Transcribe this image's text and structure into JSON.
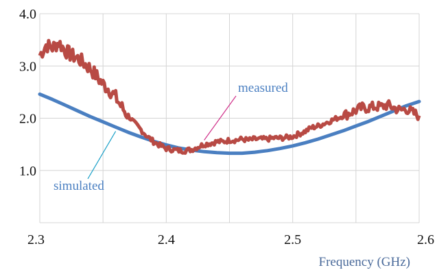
{
  "chart_data": {
    "type": "line",
    "xlabel": "Frequency (GHz)",
    "ylabel": "",
    "xlim": [
      2.3,
      2.6
    ],
    "ylim": [
      0.0,
      4.0
    ],
    "x_ticks": [
      "2.3",
      "2.4",
      "2.5",
      "2.6"
    ],
    "y_ticks": [
      "1.0",
      "2.0",
      "3.0",
      "4.0"
    ],
    "grid": true,
    "colors": {
      "measured": "#b84a44",
      "simulated": "#4a7fc1",
      "grid": "#d4d4d4",
      "xlabel": "#4a6a9a",
      "measured_pointer": "#d0308a",
      "simulated_pointer": "#1aa0c8"
    },
    "annotations": [
      {
        "text": "measured",
        "series": "measured",
        "x": 2.43,
        "y": 1.58
      },
      {
        "text": "simulated",
        "series": "simulated",
        "x": 2.36,
        "y": 1.75
      }
    ],
    "series": [
      {
        "name": "measured",
        "x": [
          2.3,
          2.305,
          2.31,
          2.315,
          2.32,
          2.325,
          2.33,
          2.335,
          2.34,
          2.345,
          2.35,
          2.355,
          2.36,
          2.365,
          2.37,
          2.375,
          2.38,
          2.385,
          2.39,
          2.395,
          2.4,
          2.405,
          2.41,
          2.415,
          2.42,
          2.425,
          2.43,
          2.435,
          2.44,
          2.445,
          2.45,
          2.455,
          2.46,
          2.465,
          2.47,
          2.475,
          2.48,
          2.485,
          2.49,
          2.495,
          2.5,
          2.505,
          2.51,
          2.515,
          2.52,
          2.525,
          2.53,
          2.535,
          2.54,
          2.545,
          2.55,
          2.555,
          2.56,
          2.565,
          2.57,
          2.575,
          2.58,
          2.585,
          2.59,
          2.595,
          2.6
        ],
        "values": [
          3.2,
          3.4,
          3.35,
          3.45,
          3.3,
          3.2,
          3.15,
          3.05,
          2.95,
          2.8,
          2.65,
          2.55,
          2.4,
          2.2,
          2.05,
          1.9,
          1.78,
          1.65,
          1.55,
          1.48,
          1.42,
          1.4,
          1.38,
          1.38,
          1.4,
          1.45,
          1.5,
          1.52,
          1.55,
          1.55,
          1.58,
          1.58,
          1.6,
          1.58,
          1.6,
          1.6,
          1.6,
          1.62,
          1.62,
          1.63,
          1.65,
          1.7,
          1.75,
          1.82,
          1.85,
          1.9,
          1.95,
          2.0,
          2.05,
          2.1,
          2.15,
          2.2,
          2.2,
          2.22,
          2.22,
          2.25,
          2.2,
          2.15,
          2.18,
          2.1,
          2.05
        ]
      },
      {
        "name": "simulated",
        "x": [
          2.3,
          2.31,
          2.32,
          2.33,
          2.34,
          2.35,
          2.36,
          2.37,
          2.38,
          2.39,
          2.4,
          2.41,
          2.42,
          2.43,
          2.44,
          2.45,
          2.46,
          2.47,
          2.48,
          2.49,
          2.5,
          2.51,
          2.52,
          2.53,
          2.54,
          2.55,
          2.56,
          2.57,
          2.58,
          2.59,
          2.6
        ],
        "values": [
          2.46,
          2.36,
          2.25,
          2.14,
          2.03,
          1.93,
          1.83,
          1.73,
          1.64,
          1.56,
          1.49,
          1.43,
          1.39,
          1.36,
          1.34,
          1.33,
          1.33,
          1.35,
          1.38,
          1.42,
          1.47,
          1.53,
          1.6,
          1.68,
          1.76,
          1.85,
          1.94,
          2.04,
          2.14,
          2.24,
          2.32
        ]
      }
    ]
  }
}
